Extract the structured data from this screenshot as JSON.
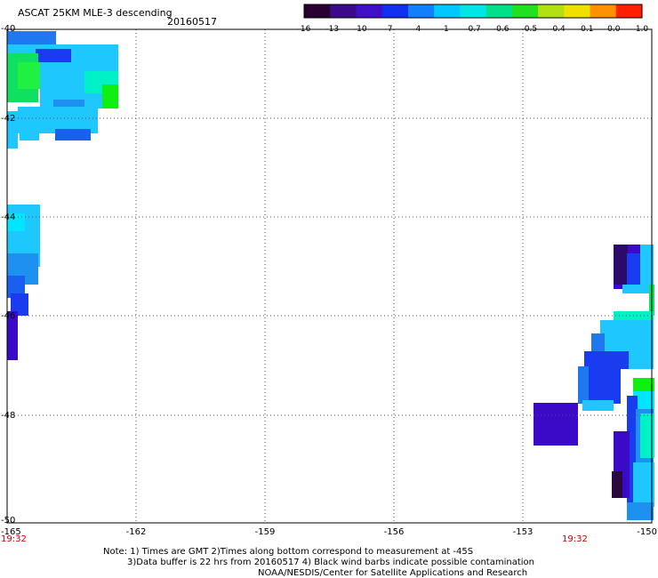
{
  "header": {
    "title": "ASCAT 25KM MLE-3 descending",
    "date": "20160517"
  },
  "colorbar": {
    "labels": [
      "-16",
      "-13",
      "-10",
      "-7",
      "-4",
      "-1",
      "-0.7",
      "-0.6",
      "-0.5",
      "-0.4",
      "-0.1",
      "0.0",
      "1.0"
    ]
  },
  "map": {
    "lat_ticks": [
      "-40",
      "-42",
      "-44",
      "-46",
      "-48",
      "-50"
    ],
    "lon_ticks": [
      "-165",
      "-162",
      "-159",
      "-156",
      "-153",
      "-150"
    ],
    "times": [
      "19:32",
      "19:32"
    ]
  },
  "notes": {
    "line1": "Note: 1) Times are GMT 2)Times along bottom correspond to measurement at -45S",
    "line2": "3)Data buffer is 22 hrs from 20160517 4) Black wind barbs indicate possible contamination",
    "line3": "NOAA/NESDIS/Center for Satellite Applications and Research"
  },
  "colors": {
    "colorbar": [
      "#2a0030",
      "#3a0a8a",
      "#4010c8",
      "#1030f0",
      "#1080ff",
      "#00c8ff",
      "#00e6e6",
      "#00e08a",
      "#20e020",
      "#b0e010",
      "#f0e000",
      "#ff9000",
      "#ff2000"
    ],
    "dark_purple": "#2a0a3a",
    "purple": "#3a0ac8",
    "blue": "#1a3cf0",
    "mid_blue": "#1e78f0",
    "light_blue": "#1ec8ff",
    "cyan": "#00e6ff",
    "aqua": "#00f0c8",
    "green": "#10e060",
    "bright_green": "#10f010",
    "time_label": "#cc0000"
  }
}
